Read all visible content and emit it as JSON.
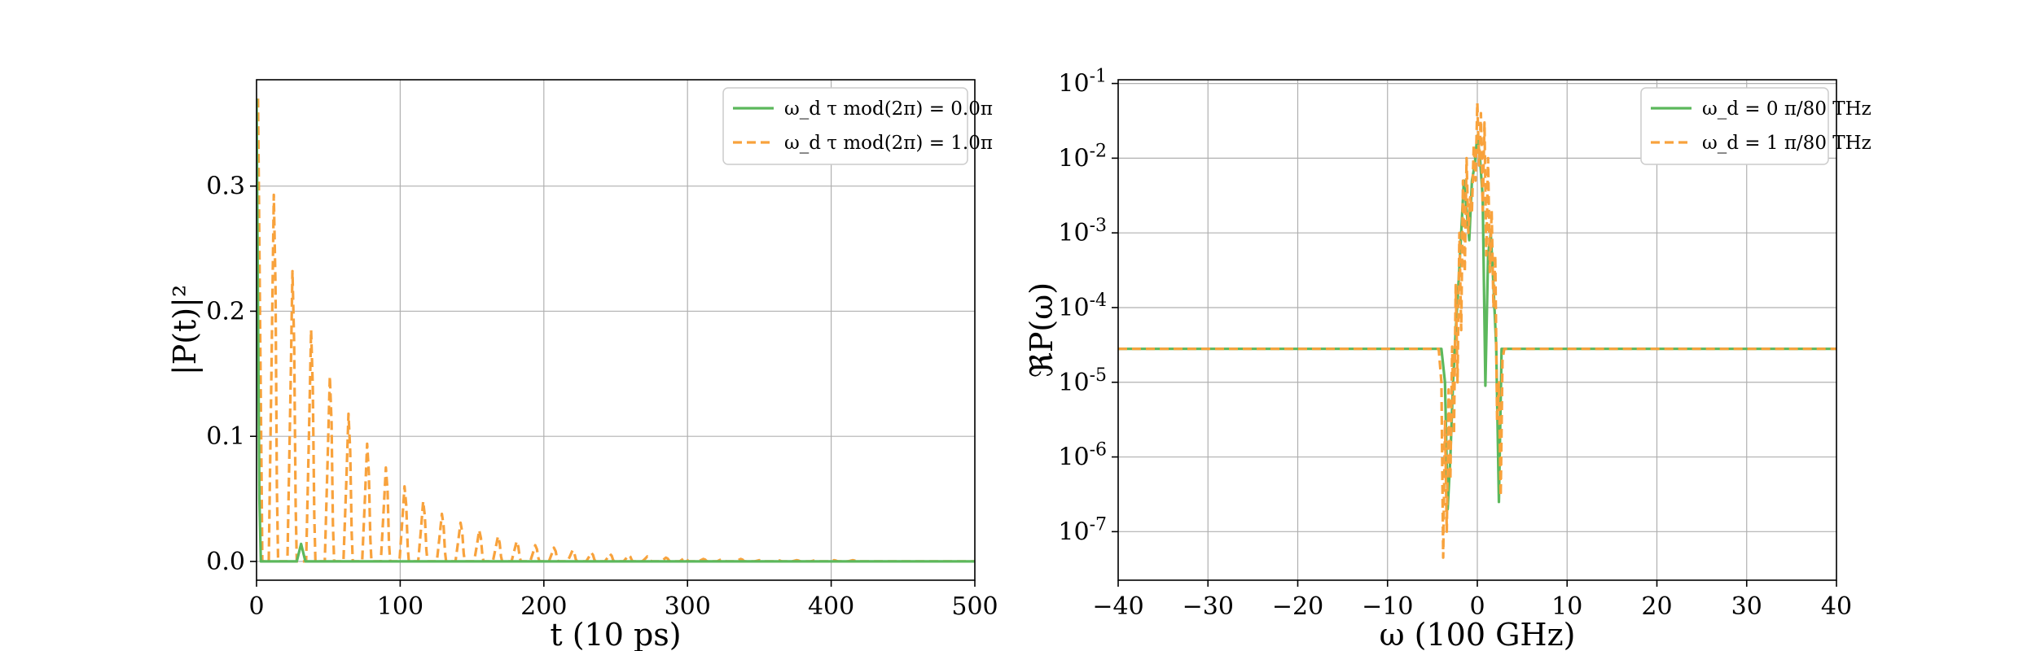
{
  "chart_data": [
    {
      "type": "line",
      "xlabel": "t (10 ps)",
      "ylabel": "|P(t)|²",
      "xlim": [
        0,
        500
      ],
      "ylim": [
        -0.015,
        0.385
      ],
      "xticks": [
        0,
        100,
        200,
        300,
        400,
        500
      ],
      "xtick_labels": [
        "0",
        "100",
        "200",
        "300",
        "400",
        "500"
      ],
      "yticks": [
        0.0,
        0.1,
        0.2,
        0.3
      ],
      "ytick_labels": [
        "0.0",
        "0.1",
        "0.2",
        "0.3"
      ],
      "grid": true,
      "legend_position": "top-right",
      "series": [
        {
          "name": "ω_d τ mod(2π) = 0.0π",
          "color": "#5cb85c",
          "style": "solid",
          "x": [
            0,
            1,
            2,
            3,
            4,
            28,
            31,
            34,
            38,
            500
          ],
          "y": [
            0.37,
            0.2,
            0.05,
            0.0,
            0.0,
            0.0,
            0.014,
            0.0,
            0.0,
            0.0
          ]
        },
        {
          "name": "ω_d τ mod(2π) = 1.0π",
          "color": "#f8a23c",
          "style": "dashed",
          "peaks_x": [
            1,
            12,
            25,
            38,
            51,
            64,
            77,
            90,
            103,
            116,
            129,
            142,
            155,
            168,
            181,
            194,
            207,
            220,
            233,
            246,
            259,
            272,
            285,
            298,
            311,
            324,
            337,
            350,
            363,
            376,
            389,
            402,
            415,
            428,
            441,
            454,
            467,
            480,
            493
          ],
          "peaks_y": [
            0.37,
            0.293,
            0.232,
            0.185,
            0.148,
            0.118,
            0.094,
            0.075,
            0.06,
            0.048,
            0.038,
            0.031,
            0.025,
            0.02,
            0.016,
            0.013,
            0.011,
            0.009,
            0.007,
            0.006,
            0.005,
            0.004,
            0.003,
            0.003,
            0.002,
            0.002,
            0.002,
            0.001,
            0.001,
            0.001,
            0.001,
            0.001,
            0.001,
            0.0,
            0.0,
            0.0,
            0.0,
            0.0,
            0.0
          ],
          "valley_y": 0.0
        }
      ]
    },
    {
      "type": "line",
      "xlabel": "ω (100 GHz)",
      "ylabel": "ℜP(ω)",
      "xlim": [
        -40,
        40
      ],
      "ylim_log10": [
        -7.65,
        -0.95
      ],
      "yscale": "log",
      "xticks": [
        -40,
        -30,
        -20,
        -10,
        0,
        10,
        20,
        30,
        40
      ],
      "xtick_labels": [
        "−40",
        "−30",
        "−20",
        "−10",
        "0",
        "10",
        "20",
        "30",
        "40"
      ],
      "yticks_log10": [
        -7,
        -6,
        -5,
        -4,
        -3,
        -2,
        -1
      ],
      "ytick_labels": [
        "10-7",
        "10-6",
        "10-5",
        "10-4",
        "10-3",
        "10-2",
        "10-1"
      ],
      "grid": true,
      "legend_position": "top-right",
      "baseline": 2.8e-05,
      "series": [
        {
          "name": "ω_d = 0 π/80 THz",
          "color": "#5cb85c",
          "style": "solid",
          "x": [
            -40,
            -4.0,
            -3.6,
            -3.3,
            -3.0,
            -2.7,
            -2.4,
            -2.1,
            -1.8,
            -1.5,
            -1.2,
            -0.9,
            -0.6,
            -0.3,
            0.0,
            0.3,
            0.6,
            0.9,
            1.2,
            1.5,
            1.8,
            2.1,
            2.4,
            2.7,
            40
          ],
          "y": [
            2.8e-05,
            2.8e-05,
            1e-05,
            2e-07,
            1e-06,
            1e-05,
            5e-05,
            0.0002,
            0.001,
            0.005,
            0.002,
            0.0008,
            0.005,
            0.008,
            0.02,
            0.01,
            0.003,
            9e-06,
            0.0005,
            0.001,
            0.0002,
            3e-05,
            2.5e-07,
            2.8e-05,
            2.8e-05
          ]
        },
        {
          "name": "ω_d = 1 π/80 THz",
          "color": "#f8a23c",
          "style": "dashed",
          "x": [
            -40,
            -4.3,
            -4.0,
            -3.8,
            -3.6,
            -3.4,
            -3.2,
            -3.0,
            -2.8,
            -2.6,
            -2.4,
            -2.2,
            -2.0,
            -1.8,
            -1.6,
            -1.4,
            -1.2,
            -1.0,
            -0.8,
            -0.6,
            -0.4,
            -0.2,
            0.0,
            0.2,
            0.4,
            0.6,
            0.8,
            1.0,
            1.2,
            1.4,
            1.6,
            1.8,
            2.0,
            2.2,
            2.4,
            2.6,
            2.8,
            3.0,
            40
          ],
          "y": [
            2.8e-05,
            2.8e-05,
            1e-05,
            4.5e-08,
            3e-06,
            1e-07,
            8e-06,
            5e-07,
            3e-05,
            2e-06,
            0.0002,
            1e-05,
            0.001,
            5e-05,
            0.005,
            0.0003,
            0.01,
            0.001,
            0.003,
            0.002,
            0.015,
            0.005,
            0.055,
            0.008,
            0.04,
            0.002,
            0.03,
            0.0005,
            0.01,
            0.0003,
            0.002,
            0.0001,
            0.0005,
            3e-06,
            1e-05,
            3e-07,
            2e-05,
            2.8e-05,
            2.8e-05
          ]
        }
      ]
    }
  ]
}
